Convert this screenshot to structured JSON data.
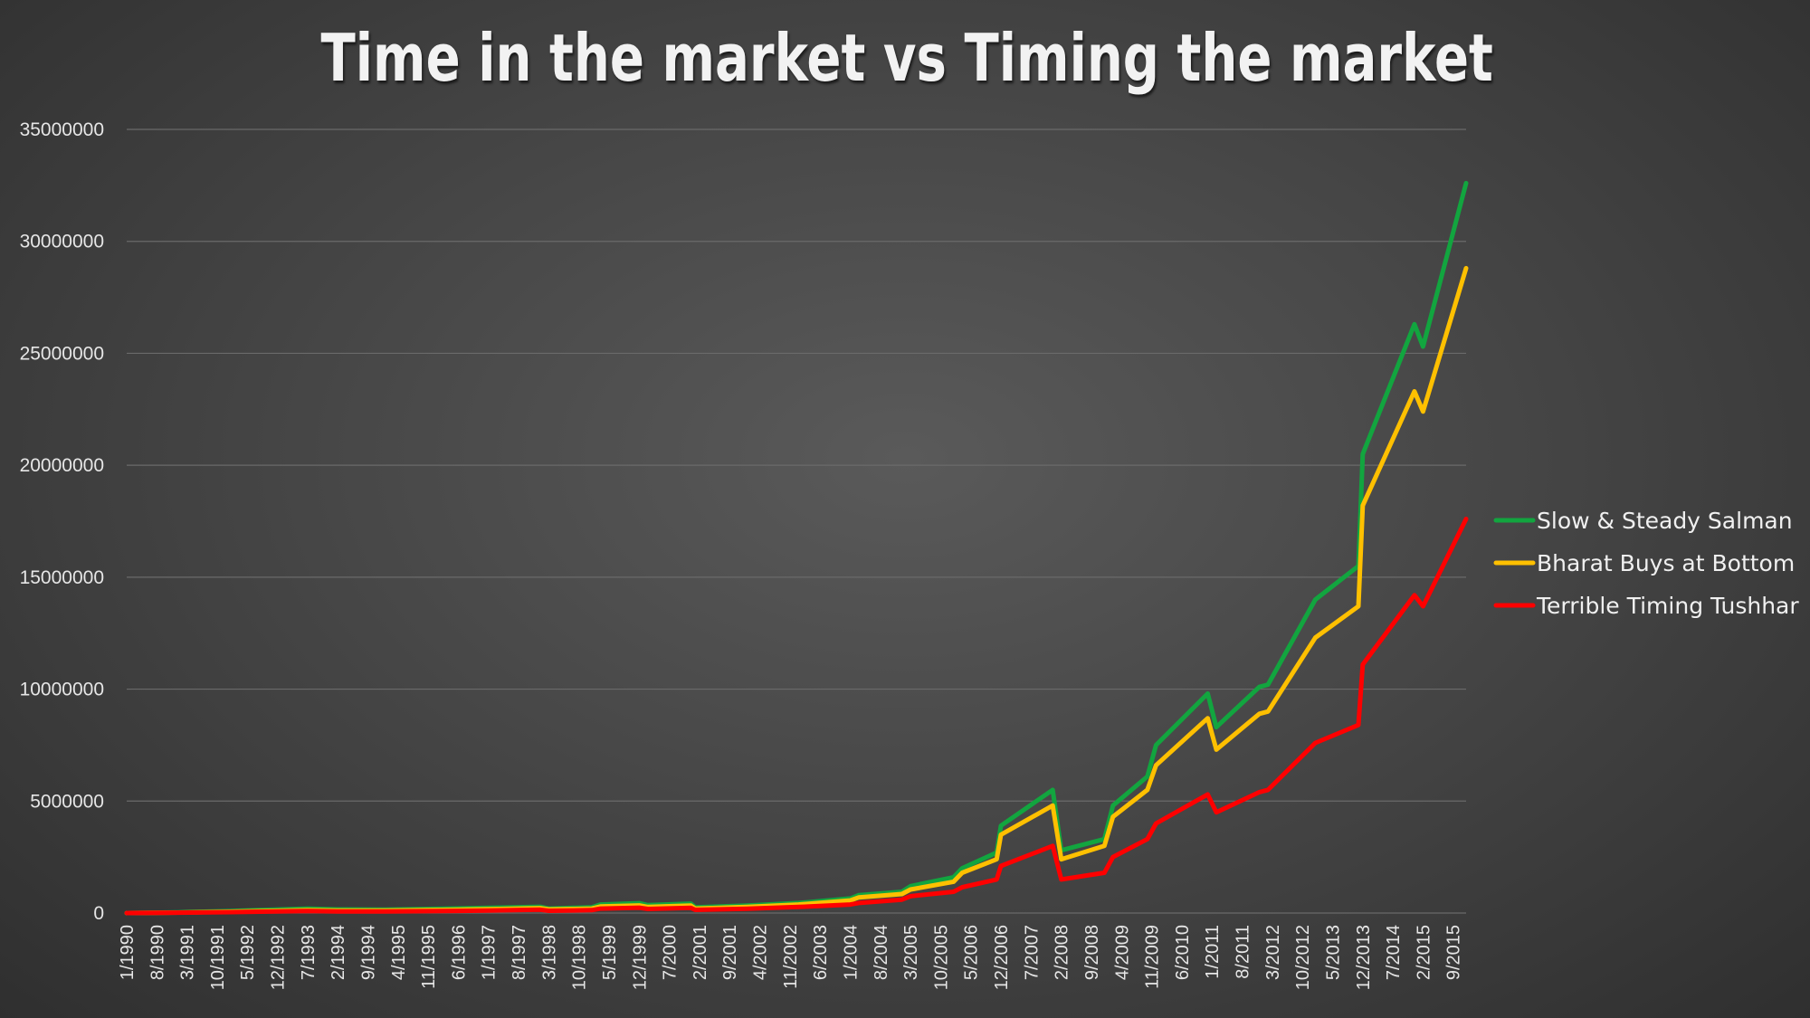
{
  "chart_data": {
    "type": "line",
    "title": "Time in the market vs Timing the market",
    "xlabel": "",
    "ylabel": "",
    "ylim": [
      0,
      35000000
    ],
    "yticks": [
      0,
      5000000,
      10000000,
      15000000,
      20000000,
      25000000,
      30000000,
      35000000
    ],
    "ytick_labels": [
      "0",
      "5000000",
      "10000000",
      "15000000",
      "20000000",
      "25000000",
      "30000000",
      "35000000"
    ],
    "x_range": [
      "1/1990",
      "12/2015"
    ],
    "x_tick_labels": [
      "1/1990",
      "8/1990",
      "3/1991",
      "10/1991",
      "5/1992",
      "12/1992",
      "7/1993",
      "2/1994",
      "9/1994",
      "4/1995",
      "11/1995",
      "6/1996",
      "1/1997",
      "8/1997",
      "3/1998",
      "10/1998",
      "5/1999",
      "12/1999",
      "7/2000",
      "2/2001",
      "9/2001",
      "4/2002",
      "11/2002",
      "6/2003",
      "1/2004",
      "8/2004",
      "3/2005",
      "10/2005",
      "5/2006",
      "12/2006",
      "7/2007",
      "2/2008",
      "9/2008",
      "4/2009",
      "11/2009",
      "6/2010",
      "1/2011",
      "8/2011",
      "3/2012",
      "10/2012",
      "5/2013",
      "12/2013",
      "7/2014",
      "2/2015",
      "9/2015"
    ],
    "grid": true,
    "legend_position": "right",
    "series": [
      {
        "name": "Slow & Steady Salman",
        "color": "#12a53f",
        "points": [
          [
            "1/1990",
            0
          ],
          [
            "1/1991",
            30000
          ],
          [
            "1/1992",
            90000
          ],
          [
            "7/1993",
            200000
          ],
          [
            "2/1994",
            160000
          ],
          [
            "1/1995",
            150000
          ],
          [
            "1/1997",
            230000
          ],
          [
            "1/1998",
            280000
          ],
          [
            "3/1998",
            200000
          ],
          [
            "1/1999",
            260000
          ],
          [
            "3/1999",
            380000
          ],
          [
            "12/1999",
            440000
          ],
          [
            "2/2000",
            350000
          ],
          [
            "12/2000",
            420000
          ],
          [
            "1/2001",
            250000
          ],
          [
            "1/2002",
            330000
          ],
          [
            "1/2003",
            450000
          ],
          [
            "1/2004",
            650000
          ],
          [
            "3/2004",
            800000
          ],
          [
            "1/2005",
            950000
          ],
          [
            "3/2005",
            1200000
          ],
          [
            "1/2006",
            1600000
          ],
          [
            "3/2006",
            2000000
          ],
          [
            "11/2006",
            2700000
          ],
          [
            "12/2006",
            3900000
          ],
          [
            "12/2007",
            5500000
          ],
          [
            "2/2008",
            2800000
          ],
          [
            "12/2008",
            3300000
          ],
          [
            "2/2009",
            4800000
          ],
          [
            "10/2009",
            6100000
          ],
          [
            "12/2009",
            7500000
          ],
          [
            "12/2010",
            9800000
          ],
          [
            "2/2011",
            8300000
          ],
          [
            "12/2011",
            10100000
          ],
          [
            "2/2012",
            10200000
          ],
          [
            "1/2013",
            14000000
          ],
          [
            "11/2013",
            15500000
          ],
          [
            "12/2013",
            20500000
          ],
          [
            "12/2014",
            26300000
          ],
          [
            "2/2015",
            25300000
          ],
          [
            "12/2015",
            32600000
          ]
        ]
      },
      {
        "name": "Bharat Buys at Bottom",
        "color": "#ffc000",
        "points": [
          [
            "1/1990",
            0
          ],
          [
            "1/1991",
            20000
          ],
          [
            "1/1992",
            60000
          ],
          [
            "7/1993",
            130000
          ],
          [
            "2/1994",
            110000
          ],
          [
            "1/1995",
            110000
          ],
          [
            "1/1997",
            170000
          ],
          [
            "1/1998",
            220000
          ],
          [
            "3/1998",
            160000
          ],
          [
            "1/1999",
            200000
          ],
          [
            "3/1999",
            290000
          ],
          [
            "12/1999",
            340000
          ],
          [
            "2/2000",
            270000
          ],
          [
            "12/2000",
            330000
          ],
          [
            "1/2001",
            200000
          ],
          [
            "1/2002",
            270000
          ],
          [
            "1/2003",
            380000
          ],
          [
            "1/2004",
            560000
          ],
          [
            "3/2004",
            700000
          ],
          [
            "1/2005",
            850000
          ],
          [
            "3/2005",
            1050000
          ],
          [
            "1/2006",
            1400000
          ],
          [
            "3/2006",
            1800000
          ],
          [
            "11/2006",
            2400000
          ],
          [
            "12/2006",
            3500000
          ],
          [
            "12/2007",
            4800000
          ],
          [
            "2/2008",
            2400000
          ],
          [
            "12/2008",
            3000000
          ],
          [
            "2/2009",
            4300000
          ],
          [
            "10/2009",
            5500000
          ],
          [
            "12/2009",
            6600000
          ],
          [
            "12/2010",
            8700000
          ],
          [
            "2/2011",
            7300000
          ],
          [
            "12/2011",
            8900000
          ],
          [
            "2/2012",
            9000000
          ],
          [
            "1/2013",
            12300000
          ],
          [
            "11/2013",
            13700000
          ],
          [
            "12/2013",
            18200000
          ],
          [
            "12/2014",
            23300000
          ],
          [
            "2/2015",
            22400000
          ],
          [
            "12/2015",
            28800000
          ]
        ]
      },
      {
        "name": "Terrible Timing Tushhar",
        "color": "#ff0000",
        "points": [
          [
            "1/1990",
            0
          ],
          [
            "1/1991",
            15000
          ],
          [
            "1/1992",
            40000
          ],
          [
            "7/1993",
            90000
          ],
          [
            "2/1994",
            70000
          ],
          [
            "1/1995",
            70000
          ],
          [
            "1/1997",
            110000
          ],
          [
            "1/1998",
            150000
          ],
          [
            "3/1998",
            100000
          ],
          [
            "1/1999",
            130000
          ],
          [
            "3/1999",
            200000
          ],
          [
            "12/1999",
            240000
          ],
          [
            "2/2000",
            180000
          ],
          [
            "12/2000",
            230000
          ],
          [
            "1/2001",
            140000
          ],
          [
            "1/2002",
            190000
          ],
          [
            "1/2003",
            270000
          ],
          [
            "1/2004",
            380000
          ],
          [
            "3/2004",
            450000
          ],
          [
            "1/2005",
            600000
          ],
          [
            "3/2005",
            750000
          ],
          [
            "1/2006",
            950000
          ],
          [
            "3/2006",
            1150000
          ],
          [
            "11/2006",
            1500000
          ],
          [
            "12/2006",
            2100000
          ],
          [
            "12/2007",
            3000000
          ],
          [
            "2/2008",
            1500000
          ],
          [
            "12/2008",
            1800000
          ],
          [
            "2/2009",
            2500000
          ],
          [
            "10/2009",
            3300000
          ],
          [
            "12/2009",
            4000000
          ],
          [
            "12/2010",
            5300000
          ],
          [
            "2/2011",
            4500000
          ],
          [
            "12/2011",
            5400000
          ],
          [
            "2/2012",
            5500000
          ],
          [
            "1/2013",
            7600000
          ],
          [
            "11/2013",
            8400000
          ],
          [
            "12/2013",
            11100000
          ],
          [
            "12/2014",
            14200000
          ],
          [
            "2/2015",
            13700000
          ],
          [
            "12/2015",
            17600000
          ]
        ]
      }
    ]
  }
}
